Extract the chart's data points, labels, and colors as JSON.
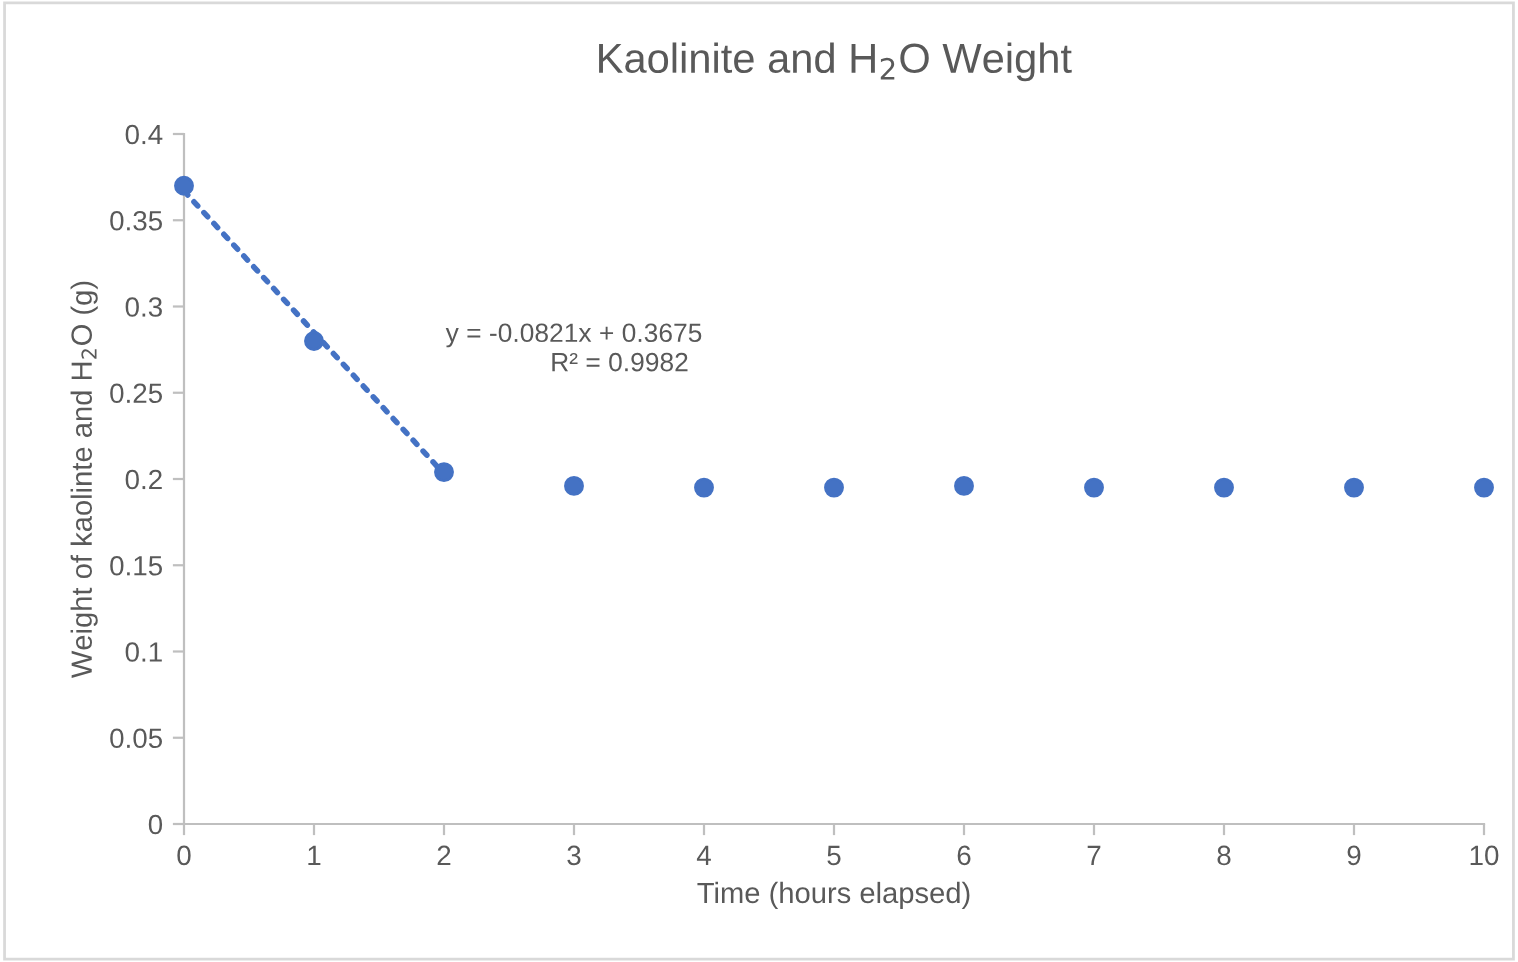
{
  "chart_data": {
    "type": "scatter",
    "title": "Kaolinite and H$_{2}$O Weight",
    "xlabel": "Time (hours elapsed)",
    "ylabel": "Weight of kaolinte and H$_{2}$O (g)",
    "series": [
      {
        "color": "#4472c4",
        "marker": "circle",
        "x": [
          0,
          1,
          2,
          3,
          4,
          5,
          6,
          7,
          8,
          9,
          10
        ],
        "values": [
          0.37,
          0.28,
          0.204,
          0.196,
          0.195,
          0.195,
          0.196,
          0.195,
          0.195,
          0.195,
          0.195
        ]
      },
      {
        "type": "line",
        "color": "#4472c4",
        "line_style": "dotted",
        "x": [
          0,
          2
        ],
        "values": [
          0.367,
          0.203
        ]
      }
    ],
    "annotations": [
      "y = -0.0821x + 0.3675",
      "R² = 0.9982"
    ],
    "xlim": [
      0,
      10
    ],
    "xticks": [
      0,
      1,
      2,
      3,
      4,
      5,
      6,
      7,
      8,
      9,
      10
    ],
    "ylim": [
      0,
      0.4
    ],
    "yticks": [
      0,
      0.05,
      0.1,
      0.15,
      0.2,
      0.25,
      0.3,
      0.35,
      0.4
    ],
    "grid": false,
    "legend": false
  }
}
